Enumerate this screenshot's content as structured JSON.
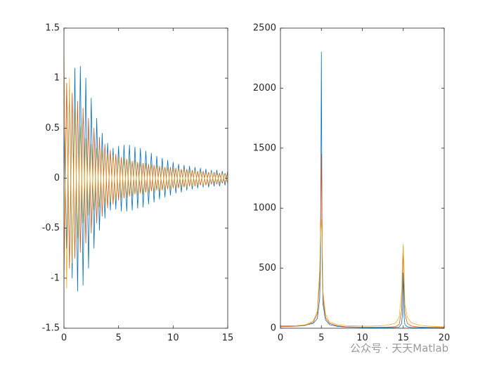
{
  "chart_data": [
    {
      "type": "line",
      "x": [
        0,
        0.25,
        0.5,
        0.75,
        1,
        1.25,
        1.5,
        1.75,
        2,
        2.25,
        2.5,
        2.75,
        3,
        3.25,
        3.5,
        3.75,
        4,
        4.25,
        4.5,
        4.75,
        5,
        5.25,
        5.5,
        5.75,
        6,
        6.25,
        6.5,
        6.75,
        7,
        7.25,
        7.5,
        7.75,
        8,
        8.25,
        8.5,
        8.75,
        9,
        9.25,
        9.5,
        9.75,
        10,
        10.25,
        10.5,
        10.75,
        11,
        11.25,
        11.5,
        11.75,
        12,
        12.25,
        12.5,
        12.75,
        13,
        13.25,
        13.5,
        13.75,
        14,
        14.25,
        14.5,
        14.75,
        15
      ],
      "series": [
        {
          "color": "#0072BD",
          "values": [
            0.5,
            -0.7,
            0.9,
            -1.0,
            1.1,
            -1.13,
            1.12,
            -1.07,
            1.0,
            -0.9,
            0.8,
            -0.7,
            0.6,
            -0.52,
            0.45,
            -0.4,
            0.35,
            -0.32,
            0.3,
            -0.31,
            0.32,
            -0.33,
            0.33,
            -0.33,
            0.33,
            -0.32,
            0.31,
            -0.3,
            0.3,
            -0.29,
            0.27,
            -0.26,
            0.25,
            -0.24,
            0.22,
            -0.21,
            0.2,
            -0.19,
            0.18,
            -0.17,
            0.16,
            -0.15,
            0.14,
            -0.14,
            0.13,
            -0.12,
            0.12,
            -0.11,
            0.11,
            -0.1,
            0.1,
            -0.09,
            0.09,
            -0.09,
            0.08,
            -0.08,
            0.08,
            -0.08,
            0.07,
            -0.07,
            0.07
          ]
        },
        {
          "color": "#D95319",
          "values": [
            -1.0,
            0.95,
            -0.9,
            0.85,
            -0.8,
            0.77,
            -0.74,
            0.7,
            -0.65,
            0.6,
            -0.55,
            0.5,
            -0.45,
            0.41,
            -0.38,
            0.34,
            -0.3,
            0.28,
            -0.26,
            0.24,
            -0.22,
            0.21,
            -0.2,
            0.19,
            -0.18,
            0.17,
            -0.16,
            0.16,
            -0.15,
            0.15,
            -0.14,
            0.14,
            -0.13,
            0.13,
            -0.12,
            0.12,
            -0.12,
            0.11,
            -0.11,
            0.11,
            -0.1,
            0.1,
            -0.1,
            0.09,
            -0.09,
            0.09,
            -0.08,
            0.08,
            -0.08,
            0.07,
            -0.07,
            0.07,
            -0.07,
            0.06,
            -0.06,
            0.06,
            -0.06,
            0.05,
            -0.05,
            0.05,
            -0.05
          ]
        },
        {
          "color": "#EDB120",
          "values": [
            1.22,
            -1.1,
            1.0,
            -0.85,
            0.7,
            -0.6,
            0.52,
            -0.45,
            0.4,
            -0.37,
            0.34,
            -0.32,
            0.3,
            -0.29,
            0.28,
            -0.27,
            0.25,
            -0.24,
            0.23,
            -0.22,
            0.21,
            -0.2,
            0.2,
            -0.19,
            0.19,
            -0.18,
            0.18,
            -0.17,
            0.16,
            -0.16,
            0.15,
            -0.15,
            0.14,
            -0.14,
            0.13,
            -0.13,
            0.12,
            -0.12,
            0.11,
            -0.11,
            0.1,
            -0.1,
            0.1,
            -0.09,
            0.09,
            -0.09,
            0.08,
            -0.08,
            0.08,
            -0.07,
            0.07,
            -0.07,
            0.06,
            -0.06,
            0.06,
            -0.05,
            0.05,
            -0.05,
            0.05,
            -0.04,
            0.04
          ]
        }
      ],
      "xlim": [
        0,
        15
      ],
      "ylim": [
        -1.5,
        1.5
      ],
      "xticks": [
        0,
        5,
        10,
        15
      ],
      "yticks": [
        -1.5,
        -1,
        -0.5,
        0,
        0.5,
        1,
        1.5
      ]
    },
    {
      "type": "line",
      "x": [
        0,
        1,
        2,
        3,
        4,
        4.5,
        4.8,
        4.9,
        5,
        5.1,
        5.2,
        5.5,
        6,
        7,
        8,
        9,
        10,
        11,
        12,
        13,
        14,
        14.5,
        14.8,
        14.9,
        15,
        15.1,
        15.2,
        15.5,
        16,
        17,
        18,
        19,
        20
      ],
      "series": [
        {
          "color": "#0072BD",
          "values": [
            20,
            20,
            22,
            25,
            40,
            80,
            250,
            600,
            2300,
            500,
            200,
            70,
            30,
            15,
            10,
            8,
            6,
            5,
            5,
            5,
            6,
            10,
            40,
            120,
            460,
            100,
            30,
            12,
            6,
            4,
            3,
            3,
            3
          ]
        },
        {
          "color": "#D95319",
          "values": [
            15,
            15,
            17,
            22,
            50,
            120,
            400,
            860,
            1450,
            700,
            250,
            90,
            40,
            20,
            12,
            10,
            8,
            8,
            8,
            9,
            12,
            30,
            150,
            400,
            680,
            350,
            120,
            40,
            18,
            10,
            8,
            7,
            6
          ]
        },
        {
          "color": "#EDB120",
          "values": [
            20,
            20,
            22,
            28,
            60,
            140,
            500,
            800,
            900,
            700,
            300,
            120,
            50,
            30,
            22,
            20,
            18,
            18,
            20,
            25,
            40,
            90,
            300,
            550,
            700,
            450,
            200,
            90,
            45,
            25,
            18,
            15,
            12
          ]
        }
      ],
      "xlim": [
        0,
        20
      ],
      "ylim": [
        0,
        2500
      ],
      "xticks": [
        0,
        5,
        10,
        15,
        20
      ],
      "yticks": [
        0,
        500,
        1000,
        1500,
        2000,
        2500
      ]
    }
  ],
  "watermark": "公众号 · 天天Matlab"
}
